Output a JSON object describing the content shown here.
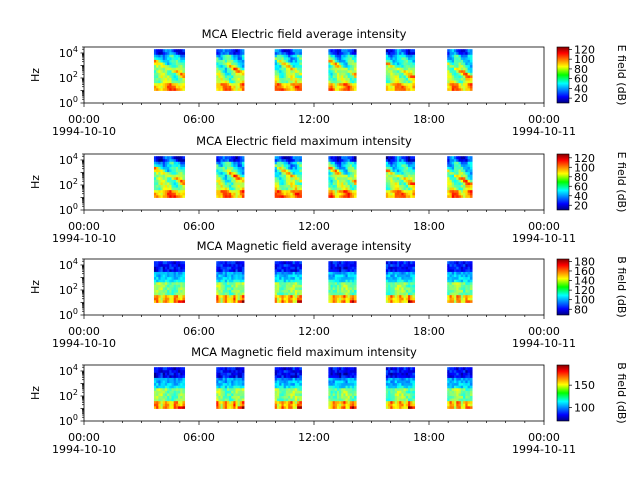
{
  "chart_data": [
    {
      "type": "heatmap",
      "title": "MCA  Electric field average intensity",
      "ylabel": "Hz",
      "colorbar_label": "E field (dB)",
      "yscale": "log",
      "ylim": [
        1,
        30000
      ],
      "yticks": [
        {
          "v": 1,
          "b": "10",
          "e": "0"
        },
        {
          "v": 100,
          "b": "10",
          "e": "2"
        },
        {
          "v": 10000,
          "b": "10",
          "e": "4"
        }
      ],
      "xlim": [
        0,
        24
      ],
      "xticks": [
        {
          "h": 0,
          "t": "00:00",
          "d": "1994-10-10"
        },
        {
          "h": 6,
          "t": "06:00",
          "d": ""
        },
        {
          "h": 12,
          "t": "12:00",
          "d": ""
        },
        {
          "h": 18,
          "t": "18:00",
          "d": ""
        },
        {
          "h": 24,
          "t": "00:00",
          "d": "1994-10-11"
        }
      ],
      "cbar_range": [
        10,
        125
      ],
      "cbar_ticks": [
        "20",
        "40",
        "60",
        "80",
        "100",
        "120"
      ],
      "data_intervals_hours": [
        [
          3.65,
          5.25
        ],
        [
          6.9,
          8.35
        ],
        [
          9.95,
          11.35
        ],
        [
          12.75,
          14.2
        ],
        [
          15.75,
          17.25
        ],
        [
          18.95,
          20.25
        ]
      ],
      "freq_range": [
        10,
        20000
      ],
      "profile": "E",
      "scale": 1.0
    },
    {
      "type": "heatmap",
      "title": "MCA  Electric field maximum intensity",
      "ylabel": "Hz",
      "colorbar_label": "E field (dB)",
      "yscale": "log",
      "ylim": [
        1,
        30000
      ],
      "yticks": [
        {
          "v": 1,
          "b": "10",
          "e": "0"
        },
        {
          "v": 100,
          "b": "10",
          "e": "2"
        },
        {
          "v": 10000,
          "b": "10",
          "e": "4"
        }
      ],
      "xlim": [
        0,
        24
      ],
      "xticks": [
        {
          "h": 0,
          "t": "00:00",
          "d": "1994-10-10"
        },
        {
          "h": 6,
          "t": "06:00",
          "d": ""
        },
        {
          "h": 12,
          "t": "12:00",
          "d": ""
        },
        {
          "h": 18,
          "t": "18:00",
          "d": ""
        },
        {
          "h": 24,
          "t": "00:00",
          "d": "1994-10-11"
        }
      ],
      "cbar_range": [
        10,
        128
      ],
      "cbar_ticks": [
        "20",
        "40",
        "60",
        "80",
        "100",
        "120"
      ],
      "data_intervals_hours": [
        [
          3.65,
          5.25
        ],
        [
          6.9,
          8.35
        ],
        [
          9.95,
          11.35
        ],
        [
          12.75,
          14.2
        ],
        [
          15.75,
          17.25
        ],
        [
          18.95,
          20.25
        ]
      ],
      "freq_range": [
        10,
        20000
      ],
      "profile": "E",
      "scale": 1.08
    },
    {
      "type": "heatmap",
      "title": "MCA  Magnetic field average intensity",
      "ylabel": "Hz",
      "colorbar_label": "B field (dB)",
      "yscale": "log",
      "ylim": [
        1,
        30000
      ],
      "yticks": [
        {
          "v": 1,
          "b": "10",
          "e": "0"
        },
        {
          "v": 100,
          "b": "10",
          "e": "2"
        },
        {
          "v": 10000,
          "b": "10",
          "e": "4"
        }
      ],
      "xlim": [
        0,
        24
      ],
      "xticks": [
        {
          "h": 0,
          "t": "00:00",
          "d": "1994-10-10"
        },
        {
          "h": 6,
          "t": "06:00",
          "d": ""
        },
        {
          "h": 12,
          "t": "12:00",
          "d": ""
        },
        {
          "h": 18,
          "t": "18:00",
          "d": ""
        },
        {
          "h": 24,
          "t": "00:00",
          "d": "1994-10-11"
        }
      ],
      "cbar_range": [
        68,
        185
      ],
      "cbar_ticks": [
        "80",
        "100",
        "120",
        "140",
        "160",
        "180"
      ],
      "data_intervals_hours": [
        [
          3.65,
          5.25
        ],
        [
          6.9,
          8.35
        ],
        [
          9.95,
          11.35
        ],
        [
          12.75,
          14.2
        ],
        [
          15.75,
          17.25
        ],
        [
          18.95,
          20.25
        ]
      ],
      "freq_range": [
        10,
        20000
      ],
      "profile": "B",
      "scale": 1.0
    },
    {
      "type": "heatmap",
      "title": "MCA  Magnetic field maximum intensity",
      "ylabel": "Hz",
      "colorbar_label": "B field (dB)",
      "yscale": "log",
      "ylim": [
        1,
        30000
      ],
      "yticks": [
        {
          "v": 1,
          "b": "10",
          "e": "0"
        },
        {
          "v": 100,
          "b": "10",
          "e": "2"
        },
        {
          "v": 10000,
          "b": "10",
          "e": "4"
        }
      ],
      "xlim": [
        0,
        24
      ],
      "xticks": [
        {
          "h": 0,
          "t": "00:00",
          "d": "1994-10-10"
        },
        {
          "h": 6,
          "t": "06:00",
          "d": ""
        },
        {
          "h": 12,
          "t": "12:00",
          "d": ""
        },
        {
          "h": 18,
          "t": "18:00",
          "d": ""
        },
        {
          "h": 24,
          "t": "00:00",
          "d": "1994-10-11"
        }
      ],
      "cbar_range": [
        70,
        195
      ],
      "cbar_ticks": [
        "100",
        "150"
      ],
      "data_intervals_hours": [
        [
          3.65,
          5.25
        ],
        [
          6.9,
          8.35
        ],
        [
          9.95,
          11.35
        ],
        [
          12.75,
          14.2
        ],
        [
          15.75,
          17.25
        ],
        [
          18.95,
          20.25
        ]
      ],
      "freq_range": [
        10,
        20000
      ],
      "profile": "B",
      "scale": 1.05
    }
  ]
}
